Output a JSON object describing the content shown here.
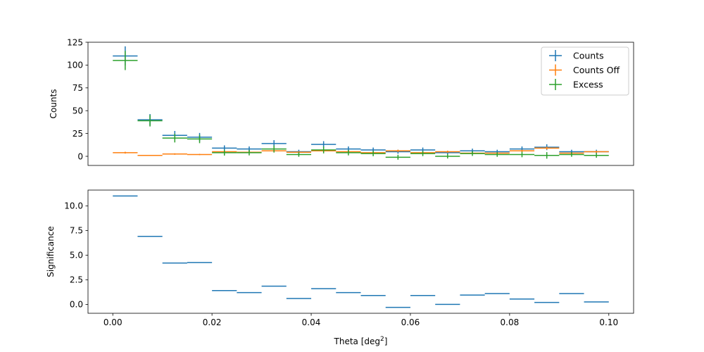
{
  "chart_data": [
    {
      "type": "scatter",
      "panel": "top",
      "ylabel": "Counts",
      "xlim": [
        -0.005,
        0.105
      ],
      "ylim": [
        -10,
        125
      ],
      "yticks": [
        0,
        25,
        50,
        75,
        100,
        125
      ],
      "legend_position": "top-right",
      "bin_width": 0.005,
      "x": [
        0.0025,
        0.0075,
        0.0125,
        0.0175,
        0.0225,
        0.0275,
        0.0325,
        0.0375,
        0.0425,
        0.0475,
        0.0525,
        0.0575,
        0.0625,
        0.0675,
        0.0725,
        0.0775,
        0.0825,
        0.0875,
        0.0925,
        0.0975
      ],
      "series": [
        {
          "name": "Counts",
          "color": "#1f77b4",
          "values": [
            110,
            40,
            23,
            21,
            9,
            8,
            14,
            5,
            13,
            8,
            7,
            5,
            7,
            4,
            6,
            5,
            8,
            10,
            5,
            5
          ],
          "errors": [
            10.5,
            6.3,
            4.8,
            4.6,
            3.0,
            2.8,
            3.7,
            2.2,
            3.6,
            2.8,
            2.6,
            2.2,
            2.6,
            2.0,
            2.4,
            2.2,
            2.8,
            3.2,
            2.2,
            2.2
          ]
        },
        {
          "name": "Counts Off",
          "color": "#ff7f0e",
          "values": [
            4,
            1,
            2.5,
            2,
            5,
            4.5,
            6,
            4.5,
            6,
            5,
            4,
            6,
            4,
            5,
            3.5,
            3.5,
            6,
            9,
            3.5,
            5
          ],
          "errors": [
            1.0,
            0.5,
            0.8,
            0.7,
            1.1,
            1.0,
            1.2,
            1.0,
            1.2,
            1.1,
            1.0,
            1.2,
            1.0,
            1.1,
            0.9,
            0.9,
            1.2,
            1.5,
            0.9,
            1.1
          ]
        },
        {
          "name": "Excess",
          "color": "#2ca02c",
          "values": [
            105,
            39,
            20,
            19,
            4,
            4,
            8,
            2,
            7,
            4,
            3,
            -1,
            3,
            0,
            3,
            2,
            2,
            1,
            2,
            1
          ],
          "errors": [
            10.5,
            6.3,
            4.8,
            4.6,
            3.2,
            3.0,
            3.9,
            2.5,
            3.8,
            3.0,
            2.9,
            2.7,
            2.8,
            2.4,
            2.6,
            2.5,
            3.0,
            3.6,
            2.5,
            2.6
          ]
        }
      ]
    },
    {
      "type": "line",
      "panel": "bottom",
      "xlabel": "Theta [deg",
      "xlabel_sup": "2",
      "xlabel_end": "]",
      "ylabel": "Significance",
      "xlim": [
        -0.005,
        0.105
      ],
      "ylim": [
        -0.9,
        11.6
      ],
      "xticks": [
        0.0,
        0.02,
        0.04,
        0.06,
        0.08,
        0.1
      ],
      "xtick_labels": [
        "0.00",
        "0.02",
        "0.04",
        "0.06",
        "0.08",
        "0.10"
      ],
      "yticks": [
        0,
        2.5,
        5,
        7.5,
        10
      ],
      "ytick_labels": [
        "0.0",
        "2.5",
        "5.0",
        "7.5",
        "10.0"
      ],
      "bin_width": 0.005,
      "x": [
        0.0025,
        0.0075,
        0.0125,
        0.0175,
        0.0225,
        0.0275,
        0.0325,
        0.0375,
        0.0425,
        0.0475,
        0.0525,
        0.0575,
        0.0625,
        0.0675,
        0.0725,
        0.0775,
        0.0825,
        0.0875,
        0.0925,
        0.0975
      ],
      "series": [
        {
          "color": "#1f77b4",
          "values": [
            11.0,
            6.9,
            4.2,
            4.25,
            1.4,
            1.2,
            1.85,
            0.6,
            1.6,
            1.2,
            0.9,
            -0.3,
            0.9,
            0.0,
            0.95,
            1.1,
            0.55,
            0.2,
            1.1,
            0.25
          ]
        }
      ]
    }
  ]
}
